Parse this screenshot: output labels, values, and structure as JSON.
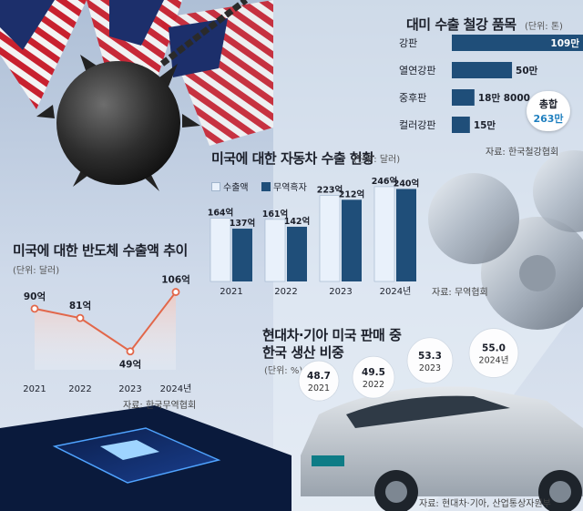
{
  "steel": {
    "title": "대미 수출 철강 품목",
    "unit": "(단위: 톤)",
    "source": "자료: 한국철강협회",
    "total_label": "총합",
    "total_value": "263만",
    "chart_data": {
      "type": "bar",
      "orientation": "horizontal",
      "categories": [
        "강판",
        "열연강판",
        "중후판",
        "컬러강판"
      ],
      "values": [
        1090000,
        500000,
        188000,
        150000
      ],
      "value_labels": [
        "109만",
        "50만",
        "18만 8000",
        "15만"
      ],
      "title": "대미 수출 철강 품목",
      "unit": "톤",
      "color": "#1f4e79"
    }
  },
  "auto": {
    "title": "미국에 대한 자동차 수출 현황",
    "unit": "(단위: 달러)",
    "source": "자료: 무역협회",
    "chart_data": {
      "type": "bar",
      "categories": [
        "2021",
        "2022",
        "2023",
        "2024년"
      ],
      "series": [
        {
          "name": "수출액",
          "values": [
            164,
            161,
            223,
            246
          ],
          "labels": [
            "164억",
            "161억",
            "223억",
            "246억"
          ],
          "color": "#e9f1fb"
        },
        {
          "name": "무역흑자",
          "values": [
            137,
            142,
            212,
            240
          ],
          "labels": [
            "137억",
            "142억",
            "212억",
            "240억"
          ],
          "color": "#1f4e79"
        }
      ],
      "unit": "억 달러",
      "ylim": [
        0,
        260
      ]
    }
  },
  "semi": {
    "title": "미국에 대한 반도체 수출액 추이",
    "unit": "(단위: 달러)",
    "source": "자료: 한국무역협회",
    "chart_data": {
      "type": "line",
      "x": [
        "2021",
        "2022",
        "2023",
        "2024년"
      ],
      "values": [
        90,
        81,
        49,
        106
      ],
      "labels": [
        "90억",
        "81억",
        "49억",
        "106억"
      ],
      "unit": "억 달러",
      "ylim": [
        40,
        110
      ],
      "color": "#e2674a"
    }
  },
  "hyundai": {
    "title_line1": "현대차·기아 미국 판매 중",
    "title_line2": "한국 생산 비중",
    "unit": "(단위: %)",
    "source": "자료: 현대차·기아, 산업통상자원부",
    "chart_data": {
      "type": "bubble",
      "x": [
        "2021",
        "2022",
        "2023",
        "2024년"
      ],
      "values": [
        48.7,
        49.5,
        53.3,
        55.0
      ],
      "labels": [
        "48.7",
        "49.5",
        "53.3",
        "55.0"
      ],
      "unit": "%"
    }
  },
  "colors": {
    "navy": "#1f4e79",
    "light_bar": "#e9f1fb",
    "line": "#e2674a",
    "bubble": "#ffffff"
  }
}
